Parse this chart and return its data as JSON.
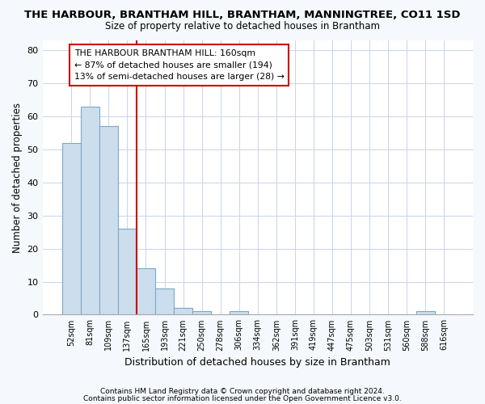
{
  "title": "THE HARBOUR, BRANTHAM HILL, BRANTHAM, MANNINGTREE, CO11 1SD",
  "subtitle": "Size of property relative to detached houses in Brantham",
  "xlabel": "Distribution of detached houses by size in Brantham",
  "ylabel": "Number of detached properties",
  "categories": [
    "52sqm",
    "81sqm",
    "109sqm",
    "137sqm",
    "165sqm",
    "193sqm",
    "221sqm",
    "250sqm",
    "278sqm",
    "306sqm",
    "334sqm",
    "362sqm",
    "391sqm",
    "419sqm",
    "447sqm",
    "475sqm",
    "503sqm",
    "531sqm",
    "560sqm",
    "588sqm",
    "616sqm"
  ],
  "values": [
    52,
    63,
    57,
    26,
    14,
    8,
    2,
    1,
    0,
    1,
    0,
    0,
    0,
    0,
    0,
    0,
    0,
    0,
    0,
    1,
    0
  ],
  "bar_color": "#ccdded",
  "bar_edge_color": "#7aaac8",
  "vline_color": "#cc0000",
  "vline_pos": 3.5,
  "annotation_title": "THE HARBOUR BRANTHAM HILL: 160sqm",
  "annotation_line1": "← 87% of detached houses are smaller (194)",
  "annotation_line2": "13% of semi-detached houses are larger (28) →",
  "annotation_box_color": "#ffffff",
  "annotation_box_edge": "#cc0000",
  "ylim": [
    0,
    83
  ],
  "yticks": [
    0,
    10,
    20,
    30,
    40,
    50,
    60,
    70,
    80
  ],
  "footer1": "Contains HM Land Registry data © Crown copyright and database right 2024.",
  "footer2": "Contains public sector information licensed under the Open Government Licence v3.0.",
  "bg_color": "#f5f8fc",
  "plot_bg_color": "#ffffff",
  "grid_color": "#c8d4e8"
}
